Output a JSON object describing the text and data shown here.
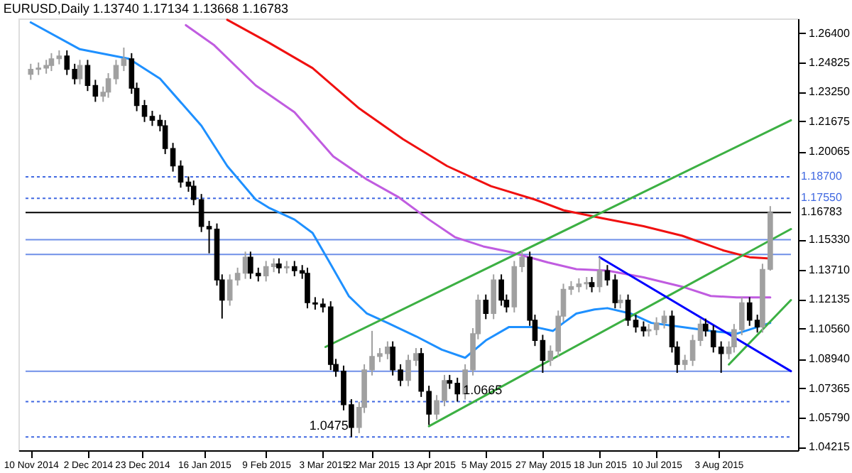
{
  "chart_data": {
    "type": "candlestick",
    "title": "EURUSD,Daily  1.13740 1.17134 1.13668 1.16783",
    "grid": false,
    "xlim": [
      "2014-11-08",
      "2015-08-31"
    ],
    "xticks": [
      {
        "value": "2014-11-10",
        "label": "10 Nov 2014"
      },
      {
        "value": "2014-12-02",
        "label": "2 Dec 2014"
      },
      {
        "value": "2014-12-23",
        "label": "23 Dec 2014"
      },
      {
        "value": "2015-01-16",
        "label": "16 Jan 2015"
      },
      {
        "value": "2015-02-09",
        "label": "9 Feb 2015"
      },
      {
        "value": "2015-03-03",
        "label": "3 Mar 2015"
      },
      {
        "value": "2015-03-22",
        "label": "22 Mar 2015"
      },
      {
        "value": "2015-04-13",
        "label": "13 Apr 2015"
      },
      {
        "value": "2015-05-05",
        "label": "5 May 2015"
      },
      {
        "value": "2015-05-27",
        "label": "27 May 2015"
      },
      {
        "value": "2015-06-18",
        "label": "18 Jun 2015"
      },
      {
        "value": "2015-07-10",
        "label": "10 Jul 2015"
      },
      {
        "value": "2015-08-03",
        "label": "3 Aug 2015"
      }
    ],
    "ylim": [
      1.0404,
      1.2719
    ],
    "yticks": [
      {
        "value": 1.264,
        "label": "1.26400"
      },
      {
        "value": 1.24825,
        "label": "1.24825"
      },
      {
        "value": 1.2325,
        "label": "1.23250"
      },
      {
        "value": 1.21675,
        "label": "1.21675"
      },
      {
        "value": 1.20065,
        "label": "1.20065"
      },
      {
        "value": 1.1533,
        "label": "1.15330"
      },
      {
        "value": 1.1371,
        "label": "1.13710"
      },
      {
        "value": 1.12135,
        "label": "1.12135"
      },
      {
        "value": 1.1056,
        "label": "1.10560"
      },
      {
        "value": 1.0894,
        "label": "1.08940"
      },
      {
        "value": 1.07365,
        "label": "1.07365"
      },
      {
        "value": 1.0579,
        "label": "1.05790"
      },
      {
        "value": 1.04215,
        "label": "1.04215"
      }
    ],
    "ref_lines": [
      {
        "axis": "y",
        "value": 1.187,
        "label": "1.18700",
        "color": "#4169e1",
        "line_style": "dotted"
      },
      {
        "axis": "y",
        "value": 1.1755,
        "label": "1.17550",
        "color": "#4169e1",
        "line_style": "dotted"
      },
      {
        "axis": "y",
        "value": 1.16783,
        "label": "1.16783",
        "color": "#000000",
        "line_style": "solid"
      },
      {
        "axis": "y",
        "value": 1.1533,
        "color": "#6f8fe8",
        "line_style": "solid"
      },
      {
        "axis": "y",
        "value": 1.1454,
        "color": "#6f8fe8",
        "line_style": "solid"
      },
      {
        "axis": "y",
        "value": 1.0828,
        "color": "#6f8fe8",
        "line_style": "solid"
      },
      {
        "axis": "y",
        "value": 1.0665,
        "color": "#4169e1",
        "line_style": "dotted"
      },
      {
        "axis": "y",
        "value": 1.0475,
        "color": "#4169e1",
        "line_style": "dotted"
      }
    ],
    "annotations": [
      {
        "text": "1.0475",
        "x": "2015-03-14",
        "y": 1.0475
      },
      {
        "text": "1.0665",
        "x": "2015-04-24",
        "y": 1.0665
      }
    ],
    "series": [
      {
        "type": "line",
        "color": "#1e90ff",
        "x": [
          "2014-11-10",
          "2014-11-29",
          "2014-12-18",
          "2014-12-30",
          "2015-01-15",
          "2015-01-25",
          "2015-02-05",
          "2015-02-10",
          "2015-02-20",
          "2015-02-27",
          "2015-03-05",
          "2015-03-13",
          "2015-03-20",
          "2015-03-28",
          "2015-04-08",
          "2015-04-18",
          "2015-04-27",
          "2015-05-05",
          "2015-05-14",
          "2015-05-24",
          "2015-05-31",
          "2015-06-04",
          "2015-06-09",
          "2015-06-16",
          "2015-06-21",
          "2015-06-30",
          "2015-07-08",
          "2015-07-20",
          "2015-07-31",
          "2015-08-10",
          "2015-08-23"
        ],
        "values": [
          1.2698,
          1.2554,
          1.2503,
          1.2396,
          1.2144,
          1.1928,
          1.1748,
          1.1705,
          1.1641,
          1.1569,
          1.1425,
          1.1231,
          1.1137,
          1.1087,
          1.1015,
          1.0943,
          1.09,
          1.0993,
          1.1065,
          1.1065,
          1.1044,
          1.1087,
          1.1137,
          1.1159,
          1.1166,
          1.1137,
          1.1087,
          1.1065,
          1.1044,
          1.1029,
          1.1087
        ]
      },
      {
        "type": "line",
        "color": "#c05ce0",
        "x": [
          "2015-01-09",
          "2015-01-20",
          "2015-02-05",
          "2015-02-20",
          "2015-03-07",
          "2015-03-20",
          "2015-04-01",
          "2015-04-13",
          "2015-04-23",
          "2015-05-04",
          "2015-05-14",
          "2015-05-29",
          "2015-06-09",
          "2015-06-21",
          "2015-07-05",
          "2015-07-20",
          "2015-07-31",
          "2015-08-10",
          "2015-08-23"
        ],
        "values": [
          1.2683,
          1.2575,
          1.236,
          1.2216,
          1.1979,
          1.1856,
          1.1763,
          1.1641,
          1.1547,
          1.1497,
          1.1468,
          1.1411,
          1.1375,
          1.1367,
          1.1331,
          1.1281,
          1.1231,
          1.1224,
          1.1224
        ]
      },
      {
        "type": "line",
        "color": "#f01010",
        "x": [
          "2015-01-25",
          "2015-02-10",
          "2015-02-27",
          "2015-03-17",
          "2015-04-03",
          "2015-04-20",
          "2015-05-07",
          "2015-05-24",
          "2015-06-04",
          "2015-06-19",
          "2015-07-05",
          "2015-07-20",
          "2015-08-05",
          "2015-08-15",
          "2015-08-23"
        ],
        "values": [
          1.2712,
          1.259,
          1.2453,
          1.2237,
          1.2072,
          1.1928,
          1.182,
          1.1748,
          1.1691,
          1.1648,
          1.1605,
          1.1554,
          1.1475,
          1.1439,
          1.1432
        ]
      },
      {
        "type": "line",
        "color": "#3cb043",
        "x": [
          "2015-03-04",
          "2015-08-31"
        ],
        "values": [
          1.0958,
          1.2173
        ]
      },
      {
        "type": "line",
        "color": "#3cb043",
        "x": [
          "2015-04-13",
          "2015-08-31"
        ],
        "values": [
          1.0533,
          1.159
        ]
      },
      {
        "type": "line",
        "color": "#3cb043",
        "x": [
          "2015-08-07",
          "2015-08-31"
        ],
        "values": [
          1.0864,
          1.1209
        ]
      },
      {
        "type": "line",
        "color": "#0000ff",
        "x": [
          "2015-06-18",
          "2015-08-31"
        ],
        "values": [
          1.1439,
          1.0828
        ]
      },
      {
        "type": "candlestick",
        "x": [
          "2014-11-10",
          "2014-11-13",
          "2014-11-16",
          "2014-11-18",
          "2014-11-21",
          "2014-11-24",
          "2014-11-27",
          "2014-11-29",
          "2014-12-02",
          "2014-12-05",
          "2014-12-08",
          "2014-12-10",
          "2014-12-13",
          "2014-12-16",
          "2014-12-19",
          "2014-12-21",
          "2014-12-24",
          "2014-12-27",
          "2014-12-30",
          "2015-01-01",
          "2015-01-04",
          "2015-01-07",
          "2015-01-10",
          "2015-01-12",
          "2015-01-15",
          "2015-01-18",
          "2015-01-21",
          "2015-01-23",
          "2015-01-26",
          "2015-01-29",
          "2015-02-01",
          "2015-02-03",
          "2015-02-06",
          "2015-02-09",
          "2015-02-12",
          "2015-02-14",
          "2015-02-17",
          "2015-02-20",
          "2015-02-23",
          "2015-02-25",
          "2015-02-28",
          "2015-03-03",
          "2015-03-06",
          "2015-03-08",
          "2015-03-11",
          "2015-03-14",
          "2015-03-17",
          "2015-03-19",
          "2015-03-22",
          "2015-03-25",
          "2015-03-28",
          "2015-03-30",
          "2015-04-02",
          "2015-04-05",
          "2015-04-08",
          "2015-04-10",
          "2015-04-13",
          "2015-04-16",
          "2015-04-19",
          "2015-04-21",
          "2015-04-24",
          "2015-04-27",
          "2015-04-30",
          "2015-05-02",
          "2015-05-05",
          "2015-05-08",
          "2015-05-11",
          "2015-05-13",
          "2015-05-16",
          "2015-05-19",
          "2015-05-22",
          "2015-05-24",
          "2015-05-27",
          "2015-05-30",
          "2015-06-02",
          "2015-06-04",
          "2015-06-07",
          "2015-06-10",
          "2015-06-13",
          "2015-06-15",
          "2015-06-18",
          "2015-06-21",
          "2015-06-24",
          "2015-06-26",
          "2015-06-29",
          "2015-07-02",
          "2015-07-05",
          "2015-07-07",
          "2015-07-10",
          "2015-07-13",
          "2015-07-16",
          "2015-07-18",
          "2015-07-21",
          "2015-07-24",
          "2015-07-27",
          "2015-07-29",
          "2015-08-01",
          "2015-08-04",
          "2015-08-07",
          "2015-08-09",
          "2015-08-12",
          "2015-08-15",
          "2015-08-18",
          "2015-08-20",
          "2015-08-23"
        ],
        "ohlc": [
          [
            1.242,
            1.2476,
            1.239,
            1.2446
          ],
          [
            1.2446,
            1.2483,
            1.2416,
            1.2453
          ],
          [
            1.2453,
            1.2497,
            1.2423,
            1.2467
          ],
          [
            1.2467,
            1.2533,
            1.2437,
            1.2503
          ],
          [
            1.2503,
            1.2548,
            1.2473,
            1.2518
          ],
          [
            1.2518,
            1.2548,
            1.2416,
            1.2446
          ],
          [
            1.2446,
            1.2476,
            1.2366,
            1.2396
          ],
          [
            1.2396,
            1.2497,
            1.2366,
            1.2467
          ],
          [
            1.2467,
            1.2497,
            1.233,
            1.236
          ],
          [
            1.236,
            1.239,
            1.2272,
            1.2302
          ],
          [
            1.2302,
            1.2354,
            1.2272,
            1.2324
          ],
          [
            1.2324,
            1.2426,
            1.2294,
            1.2396
          ],
          [
            1.2396,
            1.2497,
            1.2366,
            1.2467
          ],
          [
            1.2467,
            1.2563,
            1.2437,
            1.2503
          ],
          [
            1.2503,
            1.2533,
            1.2315,
            1.2345
          ],
          [
            1.2345,
            1.2375,
            1.2222,
            1.2252
          ],
          [
            1.2252,
            1.2282,
            1.2164,
            1.2194
          ],
          [
            1.2194,
            1.2224,
            1.2143,
            1.2173
          ],
          [
            1.2173,
            1.2203,
            1.2114,
            1.2144
          ],
          [
            1.2144,
            1.2174,
            1.1992,
            1.2022
          ],
          [
            1.2022,
            1.2052,
            1.1898,
            1.1928
          ],
          [
            1.1928,
            1.1958,
            1.1812,
            1.1842
          ],
          [
            1.1842,
            1.1872,
            1.179,
            1.182
          ],
          [
            1.182,
            1.185,
            1.1718,
            1.1748
          ],
          [
            1.1748,
            1.1778,
            1.1574,
            1.1604
          ],
          [
            1.1604,
            1.1634,
            1.146,
            1.159
          ],
          [
            1.159,
            1.162,
            1.1287,
            1.1317
          ],
          [
            1.1317,
            1.1347,
            1.111,
            1.1209
          ],
          [
            1.1209,
            1.1347,
            1.1179,
            1.1317
          ],
          [
            1.1317,
            1.1383,
            1.1287,
            1.1353
          ],
          [
            1.1353,
            1.1469,
            1.1323,
            1.1439
          ],
          [
            1.1439,
            1.1469,
            1.1323,
            1.1353
          ],
          [
            1.1353,
            1.1383,
            1.1309,
            1.1339
          ],
          [
            1.1339,
            1.1419,
            1.1309,
            1.1389
          ],
          [
            1.1389,
            1.1433,
            1.1359,
            1.1403
          ],
          [
            1.1403,
            1.1433,
            1.1352,
            1.1382
          ],
          [
            1.1382,
            1.1419,
            1.1352,
            1.1389
          ],
          [
            1.1389,
            1.1419,
            1.1337,
            1.1367
          ],
          [
            1.1367,
            1.1397,
            1.1323,
            1.1353
          ],
          [
            1.1353,
            1.1383,
            1.1165,
            1.1195
          ],
          [
            1.1195,
            1.1225,
            1.1158,
            1.1188
          ],
          [
            1.1188,
            1.1218,
            1.1143,
            1.1173
          ],
          [
            1.1173,
            1.1203,
            1.0834,
            1.0864
          ],
          [
            1.0864,
            1.0894,
            1.0798,
            1.0828
          ],
          [
            1.0828,
            1.0858,
            1.0618,
            1.0648
          ],
          [
            1.0648,
            1.0678,
            1.0475,
            1.0526
          ],
          [
            1.0526,
            1.0664,
            1.0496,
            1.0634
          ],
          [
            1.0634,
            1.0865,
            1.0604,
            1.0835
          ],
          [
            1.0835,
            1.1044,
            1.0805,
            1.0907
          ],
          [
            1.0907,
            1.0952,
            1.0877,
            1.0922
          ],
          [
            1.0922,
            1.0988,
            1.0892,
            1.0958
          ],
          [
            1.0958,
            1.0988,
            1.0805,
            1.0835
          ],
          [
            1.0835,
            1.0865,
            1.0748,
            1.0778
          ],
          [
            1.0778,
            1.0916,
            1.0748,
            1.0886
          ],
          [
            1.0886,
            1.0952,
            1.0856,
            1.0922
          ],
          [
            1.0922,
            1.0952,
            1.069,
            1.072
          ],
          [
            1.072,
            1.075,
            1.054,
            1.0598
          ],
          [
            1.0598,
            1.07,
            1.0568,
            1.067
          ],
          [
            1.067,
            1.0808,
            1.064,
            1.0778
          ],
          [
            1.0778,
            1.0808,
            1.0733,
            1.0763
          ],
          [
            1.0763,
            1.0793,
            1.0665,
            1.0706
          ],
          [
            1.0706,
            1.0865,
            1.0676,
            1.0835
          ],
          [
            1.0835,
            1.1059,
            1.0805,
            1.1029
          ],
          [
            1.1029,
            1.1239,
            1.0999,
            1.1209
          ],
          [
            1.1209,
            1.1239,
            1.1107,
            1.1137
          ],
          [
            1.1137,
            1.1347,
            1.1107,
            1.1317
          ],
          [
            1.1317,
            1.1347,
            1.1179,
            1.1209
          ],
          [
            1.1209,
            1.1239,
            1.1143,
            1.1173
          ],
          [
            1.1173,
            1.1419,
            1.1143,
            1.1389
          ],
          [
            1.1389,
            1.1475,
            1.1359,
            1.1439
          ],
          [
            1.1439,
            1.1469,
            1.1071,
            1.1101
          ],
          [
            1.1101,
            1.1131,
            1.0963,
            1.0993
          ],
          [
            1.0993,
            1.1023,
            1.0819,
            1.0886
          ],
          [
            1.0886,
            1.0966,
            1.0856,
            1.0936
          ],
          [
            1.0936,
            1.1153,
            1.0906,
            1.1123
          ],
          [
            1.1123,
            1.1297,
            1.1093,
            1.1267
          ],
          [
            1.1267,
            1.1311,
            1.1237,
            1.1281
          ],
          [
            1.1281,
            1.1326,
            1.1251,
            1.1296
          ],
          [
            1.1296,
            1.1333,
            1.1266,
            1.1303
          ],
          [
            1.1303,
            1.1333,
            1.1251,
            1.1281
          ],
          [
            1.1281,
            1.1439,
            1.1251,
            1.1367
          ],
          [
            1.1367,
            1.1397,
            1.1287,
            1.1317
          ],
          [
            1.1317,
            1.1347,
            1.1165,
            1.1195
          ],
          [
            1.1195,
            1.1239,
            1.1165,
            1.1209
          ],
          [
            1.1209,
            1.1239,
            1.1071,
            1.1101
          ],
          [
            1.1101,
            1.1131,
            1.1035,
            1.1065
          ],
          [
            1.1065,
            1.1095,
            1.1014,
            1.1044
          ],
          [
            1.1044,
            1.1081,
            1.1014,
            1.1051
          ],
          [
            1.1051,
            1.1117,
            1.1021,
            1.1087
          ],
          [
            1.1087,
            1.1153,
            1.1057,
            1.1123
          ],
          [
            1.1123,
            1.1153,
            1.0928,
            1.0958
          ],
          [
            1.0958,
            1.0988,
            1.0819,
            1.0864
          ],
          [
            1.0864,
            1.0916,
            1.0834,
            1.0886
          ],
          [
            1.0886,
            1.1023,
            1.0856,
            1.0993
          ],
          [
            1.0993,
            1.111,
            1.0963,
            1.108
          ],
          [
            1.108,
            1.111,
            1.1014,
            1.1044
          ],
          [
            1.1044,
            1.1074,
            1.0928,
            1.0958
          ],
          [
            1.0958,
            1.0988,
            1.0819,
            1.0922
          ],
          [
            1.0922,
            1.0988,
            1.0892,
            1.0958
          ],
          [
            1.0958,
            1.1081,
            1.0928,
            1.1051
          ],
          [
            1.1051,
            1.1225,
            1.1021,
            1.1195
          ],
          [
            1.1195,
            1.1225,
            1.1071,
            1.1101
          ],
          [
            1.1101,
            1.1131,
            1.1035,
            1.1065
          ],
          [
            1.1065,
            1.1404,
            1.1035,
            1.1374
          ],
          [
            1.1374,
            1.1713,
            1.1367,
            1.1678
          ]
        ],
        "colors": [
          "#a0a0a0",
          "#a0a0a0",
          "#a0a0a0",
          "#a0a0a0",
          "#a0a0a0",
          "#000000",
          "#000000",
          "#a0a0a0",
          "#000000",
          "#000000",
          "#a0a0a0",
          "#a0a0a0",
          "#a0a0a0",
          "#a0a0a0",
          "#000000",
          "#000000",
          "#000000",
          "#000000",
          "#000000",
          "#000000",
          "#000000",
          "#000000",
          "#000000",
          "#000000",
          "#000000",
          "#000000",
          "#000000",
          "#000000",
          "#a0a0a0",
          "#a0a0a0",
          "#a0a0a0",
          "#000000",
          "#000000",
          "#a0a0a0",
          "#a0a0a0",
          "#000000",
          "#a0a0a0",
          "#000000",
          "#000000",
          "#000000",
          "#000000",
          "#000000",
          "#000000",
          "#000000",
          "#000000",
          "#000000",
          "#a0a0a0",
          "#a0a0a0",
          "#a0a0a0",
          "#a0a0a0",
          "#a0a0a0",
          "#000000",
          "#000000",
          "#a0a0a0",
          "#a0a0a0",
          "#000000",
          "#000000",
          "#a0a0a0",
          "#a0a0a0",
          "#000000",
          "#000000",
          "#a0a0a0",
          "#a0a0a0",
          "#a0a0a0",
          "#000000",
          "#a0a0a0",
          "#000000",
          "#000000",
          "#a0a0a0",
          "#a0a0a0",
          "#000000",
          "#000000",
          "#000000",
          "#a0a0a0",
          "#a0a0a0",
          "#a0a0a0",
          "#a0a0a0",
          "#a0a0a0",
          "#a0a0a0",
          "#000000",
          "#a0a0a0",
          "#000000",
          "#000000",
          "#a0a0a0",
          "#000000",
          "#000000",
          "#000000",
          "#a0a0a0",
          "#a0a0a0",
          "#a0a0a0",
          "#000000",
          "#000000",
          "#a0a0a0",
          "#a0a0a0",
          "#a0a0a0",
          "#000000",
          "#000000",
          "#000000",
          "#a0a0a0",
          "#a0a0a0",
          "#a0a0a0",
          "#000000",
          "#000000",
          "#a0a0a0",
          "#a0a0a0"
        ]
      }
    ]
  }
}
